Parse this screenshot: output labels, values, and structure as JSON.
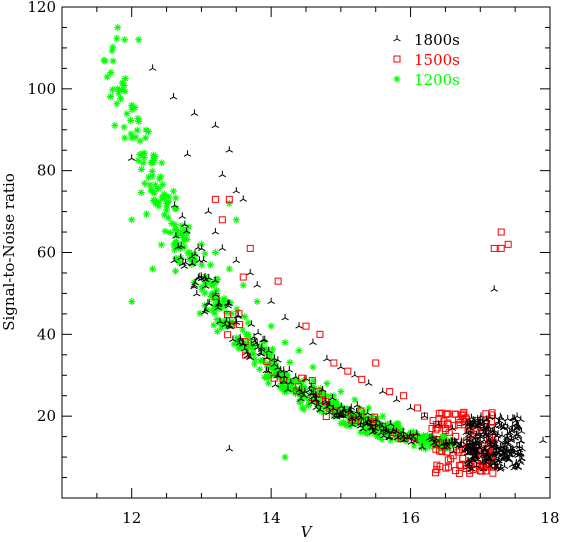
{
  "chart_data": {
    "type": "scatter",
    "title": "",
    "xlabel": "V",
    "ylabel": "Signal-to-Noise ratio",
    "xlim": [
      11,
      18
    ],
    "ylim": [
      0,
      120
    ],
    "x_ticks": [
      12,
      14,
      16,
      18
    ],
    "y_ticks": [
      20,
      40,
      60,
      80,
      100,
      120
    ],
    "x_minor_step": 0.5,
    "y_minor_step": 5,
    "grid": false,
    "legend_position": "top-right",
    "series": [
      {
        "name": "1800s",
        "marker": "tripod",
        "color": "#000000",
        "points": [
          [
            12.3,
            105
          ],
          [
            12.6,
            98
          ],
          [
            12.0,
            83
          ],
          [
            12.9,
            94
          ],
          [
            12.8,
            84
          ],
          [
            13.2,
            91
          ],
          [
            13.3,
            79
          ],
          [
            13.4,
            85
          ],
          [
            13.5,
            75
          ],
          [
            13.6,
            73
          ],
          [
            13.1,
            70
          ],
          [
            13.2,
            65
          ],
          [
            13.3,
            61
          ],
          [
            13.5,
            58
          ],
          [
            13.7,
            55
          ],
          [
            13.8,
            52
          ],
          [
            14.0,
            48
          ],
          [
            14.2,
            44
          ],
          [
            14.4,
            42
          ],
          [
            14.6,
            38
          ],
          [
            14.8,
            34
          ],
          [
            15.0,
            32
          ],
          [
            15.2,
            30
          ],
          [
            15.4,
            28
          ],
          [
            15.6,
            26
          ],
          [
            15.8,
            24
          ],
          [
            16.0,
            22
          ],
          [
            16.2,
            20
          ],
          [
            16.4,
            18
          ],
          [
            16.6,
            17
          ],
          [
            16.8,
            16
          ],
          [
            17.0,
            15
          ],
          [
            17.2,
            14
          ],
          [
            17.4,
            13
          ],
          [
            17.6,
            12
          ],
          [
            17.2,
            51
          ],
          [
            13.4,
            12
          ],
          [
            17.9,
            14
          ]
        ],
        "cluster": {
          "x_range": [
            16.8,
            17.6
          ],
          "y_range": [
            7,
            20
          ],
          "count": 220
        }
      },
      {
        "name": "1500s",
        "marker": "square",
        "color": "#ff0000",
        "points": [
          [
            13.3,
            68
          ],
          [
            13.2,
            73
          ],
          [
            13.4,
            73
          ],
          [
            13.6,
            54
          ],
          [
            13.7,
            61
          ],
          [
            14.1,
            53
          ],
          [
            14.5,
            42
          ],
          [
            14.7,
            40
          ],
          [
            14.9,
            33
          ],
          [
            15.1,
            31
          ],
          [
            15.3,
            29
          ],
          [
            15.5,
            33
          ],
          [
            15.7,
            26
          ],
          [
            15.9,
            25
          ],
          [
            16.1,
            22
          ],
          [
            17.2,
            61
          ],
          [
            17.3,
            61
          ],
          [
            17.3,
            65
          ],
          [
            17.4,
            62
          ],
          [
            16.2,
            20
          ],
          [
            16.4,
            18
          ],
          [
            16.5,
            17
          ],
          [
            16.9,
            7
          ],
          [
            16.7,
            6
          ]
        ],
        "cluster": {
          "x_range": [
            16.3,
            17.2
          ],
          "y_range": [
            6,
            21
          ],
          "count": 120
        }
      },
      {
        "name": "1200s",
        "marker": "star",
        "color": "#00ff00",
        "points": [
          [
            11.8,
            115
          ],
          [
            11.9,
            112
          ],
          [
            12.1,
            112
          ],
          [
            11.7,
            104
          ],
          [
            11.6,
            107
          ],
          [
            11.8,
            100
          ],
          [
            12.0,
            96
          ],
          [
            12.1,
            92
          ],
          [
            12.2,
            88
          ],
          [
            11.9,
            88
          ],
          [
            12.3,
            82
          ],
          [
            12.4,
            78
          ],
          [
            12.5,
            72
          ],
          [
            12.6,
            75
          ],
          [
            12.0,
            68
          ],
          [
            12.3,
            56
          ],
          [
            12.0,
            48
          ],
          [
            14.2,
            10
          ],
          [
            13.0,
            62
          ],
          [
            13.2,
            60
          ],
          [
            13.4,
            56
          ],
          [
            13.6,
            52
          ],
          [
            13.8,
            48
          ],
          [
            14.0,
            42
          ],
          [
            14.2,
            38
          ],
          [
            14.4,
            36
          ],
          [
            14.6,
            32
          ],
          [
            14.8,
            28
          ],
          [
            15.0,
            26
          ],
          [
            15.2,
            24
          ],
          [
            15.4,
            22
          ],
          [
            15.6,
            20
          ],
          [
            15.8,
            18
          ],
          [
            16.0,
            16
          ],
          [
            16.2,
            15
          ],
          [
            16.4,
            14
          ],
          [
            16.6,
            13
          ],
          [
            13.4,
            72
          ],
          [
            13.5,
            68
          ]
        ]
      }
    ]
  }
}
